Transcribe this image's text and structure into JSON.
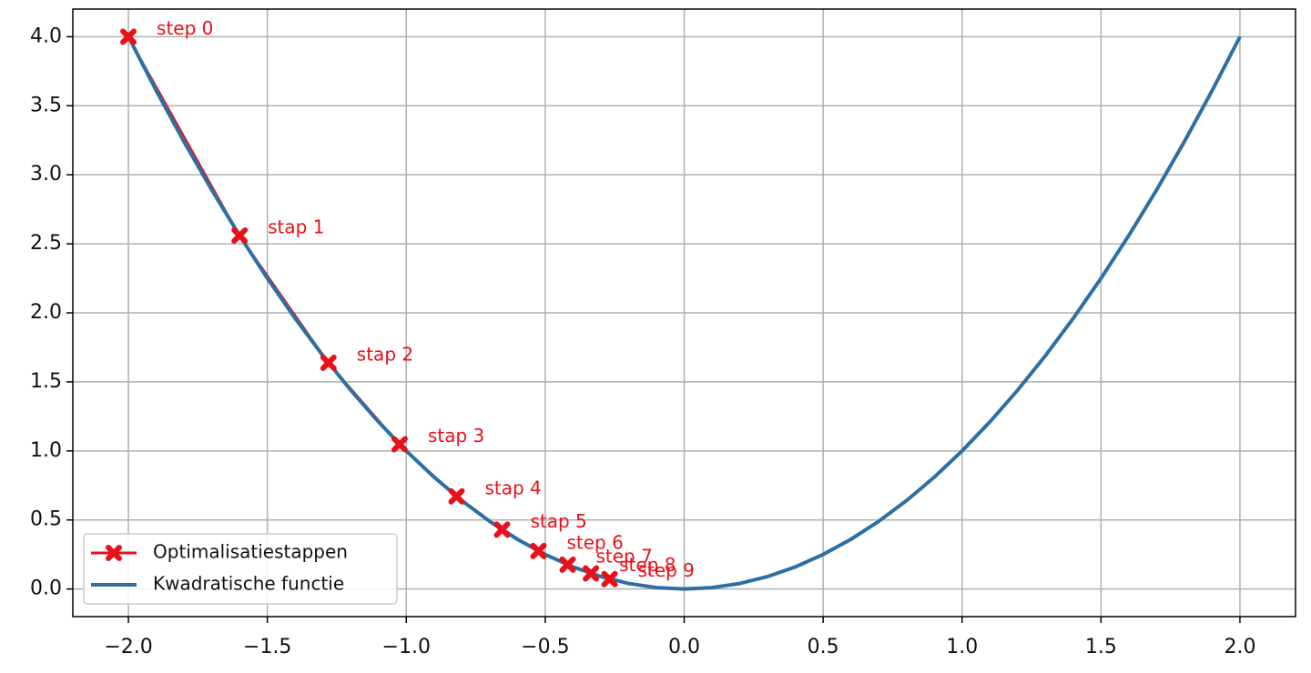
{
  "chart_data": {
    "type": "line",
    "xlim": [
      -2.2,
      2.2
    ],
    "ylim": [
      -0.2,
      4.2
    ],
    "xticks": [
      {
        "value": -2,
        "label": "−2.0"
      },
      {
        "value": -1.5,
        "label": "−1.5"
      },
      {
        "value": -1,
        "label": "−1.0"
      },
      {
        "value": -0.5,
        "label": "−0.5"
      },
      {
        "value": 0,
        "label": "0.0"
      },
      {
        "value": 0.5,
        "label": "0.5"
      },
      {
        "value": 1,
        "label": "1.0"
      },
      {
        "value": 1.5,
        "label": "1.5"
      },
      {
        "value": 2,
        "label": "2.0"
      }
    ],
    "yticks": [
      {
        "value": 0,
        "label": "0.0"
      },
      {
        "value": 0.5,
        "label": "0.5"
      },
      {
        "value": 1,
        "label": "1.0"
      },
      {
        "value": 1.5,
        "label": "1.5"
      },
      {
        "value": 2,
        "label": "2.0"
      },
      {
        "value": 2.5,
        "label": "2.5"
      },
      {
        "value": 3,
        "label": "3.0"
      },
      {
        "value": 3.5,
        "label": "3.5"
      },
      {
        "value": 4,
        "label": "4.0"
      }
    ],
    "grid": true,
    "legend": "lower left",
    "series": [
      {
        "name": "Optimalisatiestappen",
        "color": "#e8101a",
        "marker": "X",
        "x": [
          -2,
          -1.6,
          -1.28,
          -1.024,
          -0.8192,
          -0.65536,
          -0.524288,
          -0.4194304,
          -0.33554432,
          -0.268435456
        ],
        "values": [
          4,
          2.56,
          1.6384,
          1.048576,
          0.67108864,
          0.4294967,
          0.2748779,
          0.1759219,
          0.11259,
          0.0720576
        ]
      },
      {
        "name": "Kwadratische functie",
        "color": "#2e6fa3",
        "x": [
          -2,
          -1.9,
          -1.8,
          -1.7,
          -1.6,
          -1.5,
          -1.4,
          -1.3,
          -1.2,
          -1.1,
          -1,
          -0.9,
          -0.8,
          -0.7,
          -0.6,
          -0.5,
          -0.4,
          -0.3,
          -0.2,
          -0.1,
          0,
          0.1,
          0.2,
          0.3,
          0.4,
          0.5,
          0.6,
          0.7,
          0.8,
          0.9,
          1,
          1.1,
          1.2,
          1.3,
          1.4,
          1.5,
          1.6,
          1.7,
          1.8,
          1.9,
          2
        ],
        "values": [
          4,
          3.61,
          3.24,
          2.89,
          2.56,
          2.25,
          1.96,
          1.69,
          1.44,
          1.21,
          1,
          0.81,
          0.64,
          0.49,
          0.36,
          0.25,
          0.16,
          0.09,
          0.04,
          0.01,
          0,
          0.01,
          0.04,
          0.09,
          0.16,
          0.25,
          0.36,
          0.49,
          0.64,
          0.81,
          1,
          1.21,
          1.44,
          1.69,
          1.96,
          2.25,
          2.56,
          2.89,
          3.24,
          3.61,
          4
        ]
      }
    ],
    "annotations": [
      "step 0",
      "stap 1",
      "stap 2",
      "stap 3",
      "stap 4",
      "stap 5",
      "step 6",
      "step 7",
      "step 8",
      "step 9"
    ]
  }
}
